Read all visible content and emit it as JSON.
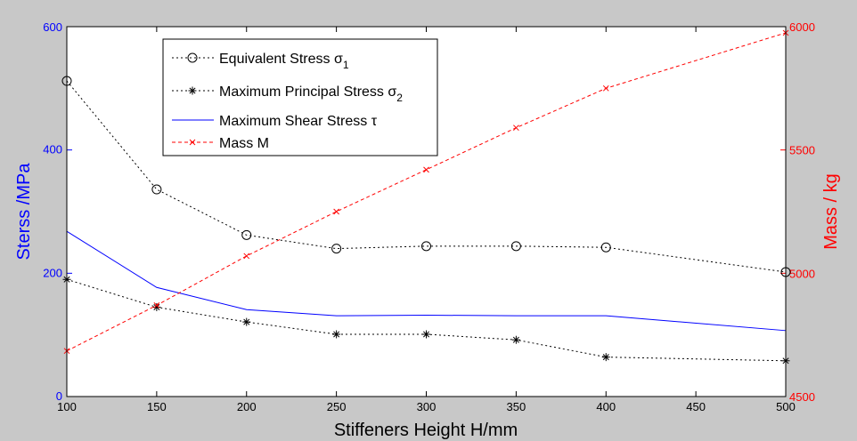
{
  "chart_data": {
    "type": "line",
    "xlabel": "Stiffeners Height  H/mm",
    "ylabel_left": "Sterss /MPa",
    "ylabel_right": "Mass / kg",
    "xlim": [
      100,
      500
    ],
    "ylim_left": [
      0,
      600
    ],
    "ylim_right": [
      4500,
      6000
    ],
    "x_ticks": [
      "100",
      "150",
      "200",
      "250",
      "300",
      "350",
      "400",
      "450",
      "500"
    ],
    "y_left_ticks": [
      "0",
      "200",
      "400",
      "600"
    ],
    "y_right_ticks": [
      "4500",
      "5000",
      "5500",
      "6000"
    ],
    "grid": false,
    "legend_position": "top-left",
    "colors": {
      "left_axis": "#0000ff",
      "right_axis": "#ff0000",
      "axes": "#000000",
      "background": "#c8c8c8",
      "plot": "#ffffff"
    },
    "series": [
      {
        "key": "equivalent",
        "name": "Equivalent Stress σ",
        "name_subscript": "1",
        "axis": "left",
        "color": "#000000",
        "line": "dotted",
        "marker": "circle",
        "x": [
          100,
          150,
          200,
          250,
          300,
          350,
          400,
          500
        ],
        "y": [
          512,
          336,
          262,
          240,
          244,
          244,
          242,
          202
        ]
      },
      {
        "key": "principal",
        "name": "Maximum Principal Stress σ",
        "name_subscript": "2",
        "axis": "left",
        "color": "#000000",
        "line": "dotted",
        "marker": "star",
        "x": [
          100,
          150,
          200,
          250,
          300,
          350,
          400,
          500
        ],
        "y": [
          190,
          145,
          121,
          101,
          101,
          92,
          64,
          58
        ]
      },
      {
        "key": "shear",
        "name": "Maximum Shear Stress τ",
        "name_subscript": "",
        "axis": "left",
        "color": "#0000ff",
        "line": "solid",
        "marker": "none",
        "x": [
          100,
          150,
          200,
          250,
          300,
          350,
          400,
          500
        ],
        "y": [
          268,
          177,
          141,
          131,
          132,
          131,
          131,
          107
        ]
      },
      {
        "key": "mass",
        "name": "Mass M",
        "name_subscript": "",
        "axis": "right",
        "color": "#ff0000",
        "line": "dashed",
        "marker": "x",
        "x": [
          100,
          150,
          200,
          250,
          300,
          350,
          400,
          500
        ],
        "y": [
          4685,
          4870,
          5070,
          5250,
          5420,
          5590,
          5750,
          5975
        ]
      }
    ]
  }
}
